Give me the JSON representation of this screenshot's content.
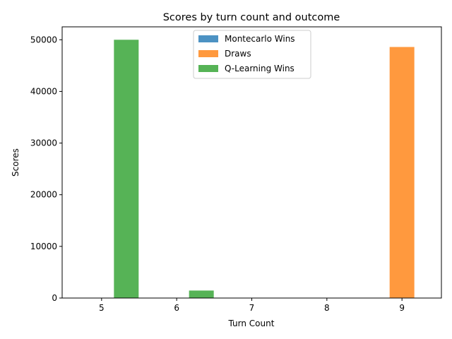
{
  "chart_data": {
    "type": "bar",
    "title": "Scores by turn count and outcome",
    "xlabel": "Turn Count",
    "ylabel": "Scores",
    "categories": [
      "5",
      "6",
      "7",
      "8",
      "9"
    ],
    "ylim": [
      0,
      52500
    ],
    "yticks": [
      0,
      10000,
      20000,
      30000,
      40000,
      50000
    ],
    "yticklabels": [
      "0",
      "10000",
      "20000",
      "30000",
      "40000",
      "50000"
    ],
    "legend_position": "top-center",
    "grid": false,
    "series": [
      {
        "name": "Montecarlo Wins",
        "color": "#1f77b4",
        "values": [
          0,
          0,
          0,
          0,
          0
        ]
      },
      {
        "name": "Draws",
        "color": "#ff7f0e",
        "values": [
          0,
          0,
          0,
          0,
          48600
        ]
      },
      {
        "name": "Q-Learning Wins",
        "color": "#2ca02c",
        "values": [
          50000,
          1450,
          0,
          0,
          0
        ]
      }
    ],
    "bar_opacity": 0.8
  }
}
